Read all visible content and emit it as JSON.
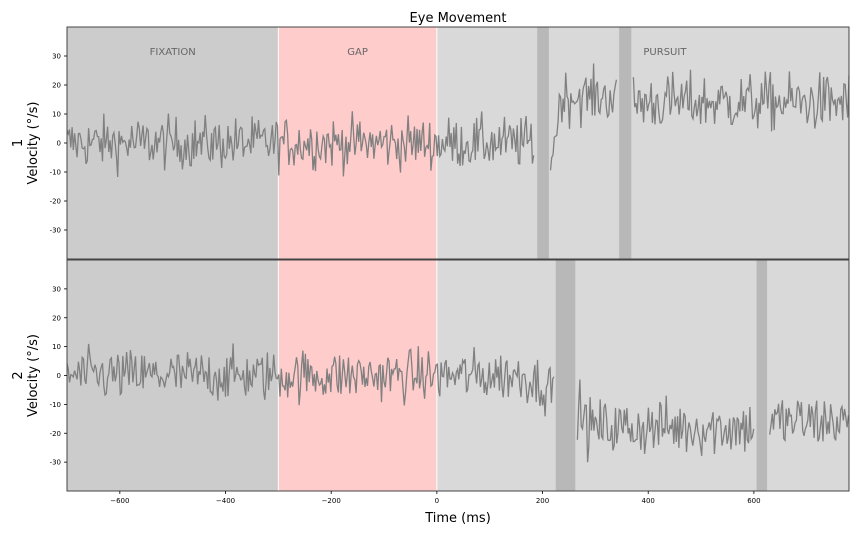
{
  "chart_data": {
    "type": "line",
    "title": "Eye Movement",
    "xlabel": "Time (ms)",
    "xlim": [
      -700,
      780
    ],
    "ylim": [
      -40,
      40
    ],
    "xticks": [
      -600,
      -400,
      -200,
      0,
      200,
      400,
      600
    ],
    "yticks": [
      30,
      20,
      10,
      0,
      -10,
      -20,
      -30
    ],
    "phases": [
      {
        "label": "FIXATION",
        "start": -700,
        "end": -300,
        "color": "#cccccc"
      },
      {
        "label": "GAP",
        "start": -300,
        "end": 0,
        "color": "#ffcccc"
      },
      {
        "label": "PURSUIT",
        "start": 0,
        "end": 780,
        "color": "#d9d9d9"
      }
    ],
    "line_color": "#808080",
    "panels": [
      {
        "name": "1",
        "ylabel": "1\nVelocity (°/s)",
        "blinks": [
          [
            190,
            212
          ],
          [
            345,
            368
          ]
        ],
        "segments": [
          {
            "start": -700,
            "end": 185,
            "base": 0,
            "amp": 4.5
          },
          {
            "start": 215,
            "end": 340,
            "base": 16,
            "amp": 4.5,
            "ramp_from": -8
          },
          {
            "start": 372,
            "end": 780,
            "base": 14,
            "amp": 5
          }
        ]
      },
      {
        "name": "2",
        "ylabel": "2\nVelocity (°/s)",
        "blinks": [
          [
            225,
            262
          ],
          [
            605,
            625
          ]
        ],
        "segments": [
          {
            "start": -700,
            "end": 222,
            "base": 0,
            "amp": 4.5,
            "ramp_to": -5
          },
          {
            "start": 266,
            "end": 600,
            "base": -18,
            "amp": 5,
            "ramp_from": -10
          },
          {
            "start": 630,
            "end": 780,
            "base": -16,
            "amp": 5
          }
        ]
      }
    ]
  }
}
